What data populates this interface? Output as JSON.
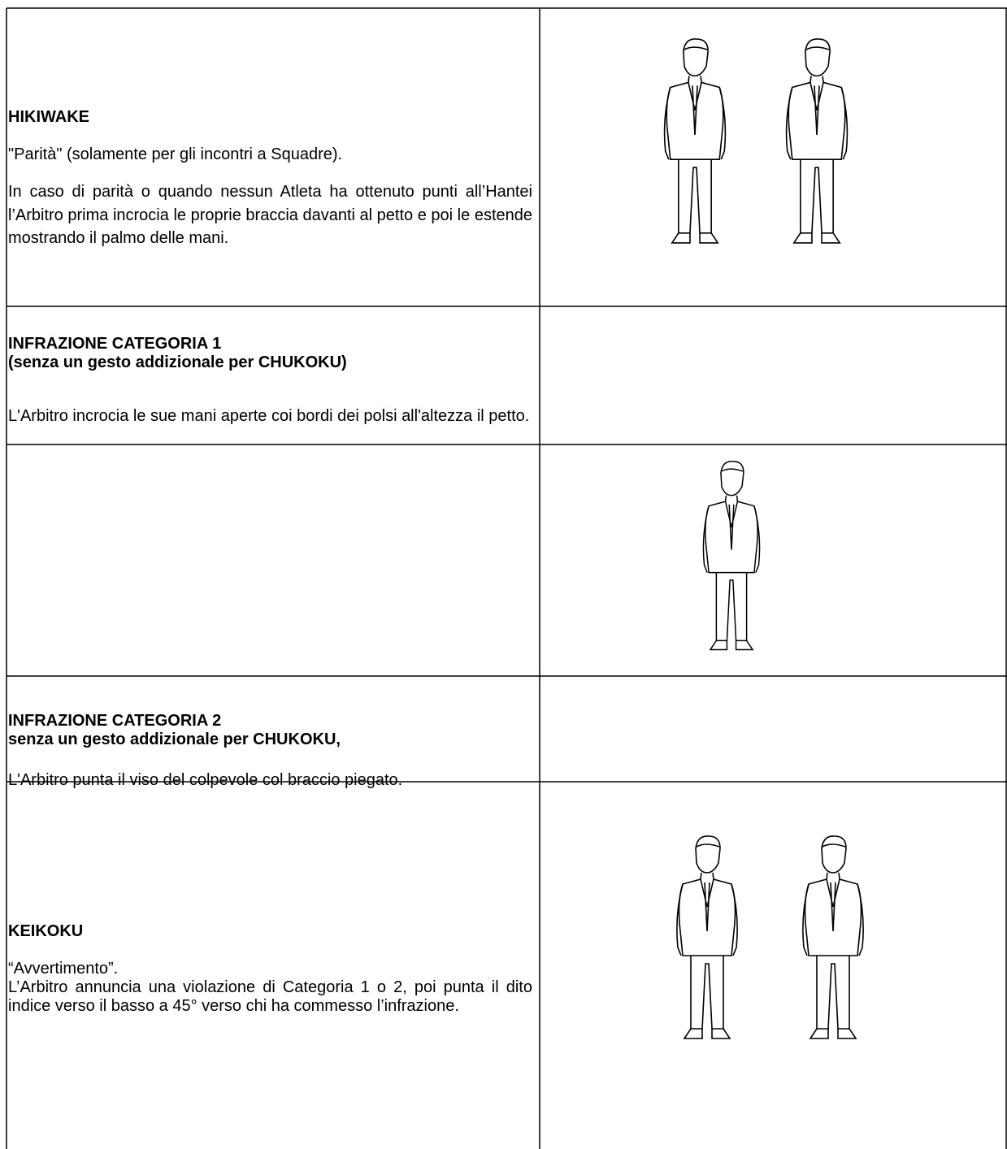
{
  "table": {
    "rows": [
      {
        "title": "HIKIWAKE",
        "lines": [
          "\"Parità\"  (solamente per gli incontri a Squadre)."
        ],
        "paragraph": "In caso di parità o quando nessun Atleta ha ottenuto punti all’Hantei l’Arbitro prima incrocia le proprie braccia davanti al petto e poi le estende mostrando il palmo delle mani."
      },
      {
        "title": "INFRAZIONE CATEGORIA 1",
        "subtitle": "(senza un gesto addizionale per CHUKOKU)",
        "paragraph": "L'Arbitro incrocia le sue mani aperte coi bordi dei polsi all'altezza il petto."
      },
      {
        "title": "INFRAZIONE CATEGORIA 2",
        "subtitle": "senza un gesto addizionale per CHUKOKU,",
        "paragraph": "L'Arbitro punta il viso del colpevole col braccio piegato."
      },
      {
        "title": "KEIKOKU",
        "lines": [
          "“Avvertimento”."
        ],
        "paragraph": "L’Arbitro annuncia una violazione di Categoria 1 o 2, poi punta il dito indice verso il basso a 45° verso chi ha commesso l’infrazione."
      }
    ]
  }
}
